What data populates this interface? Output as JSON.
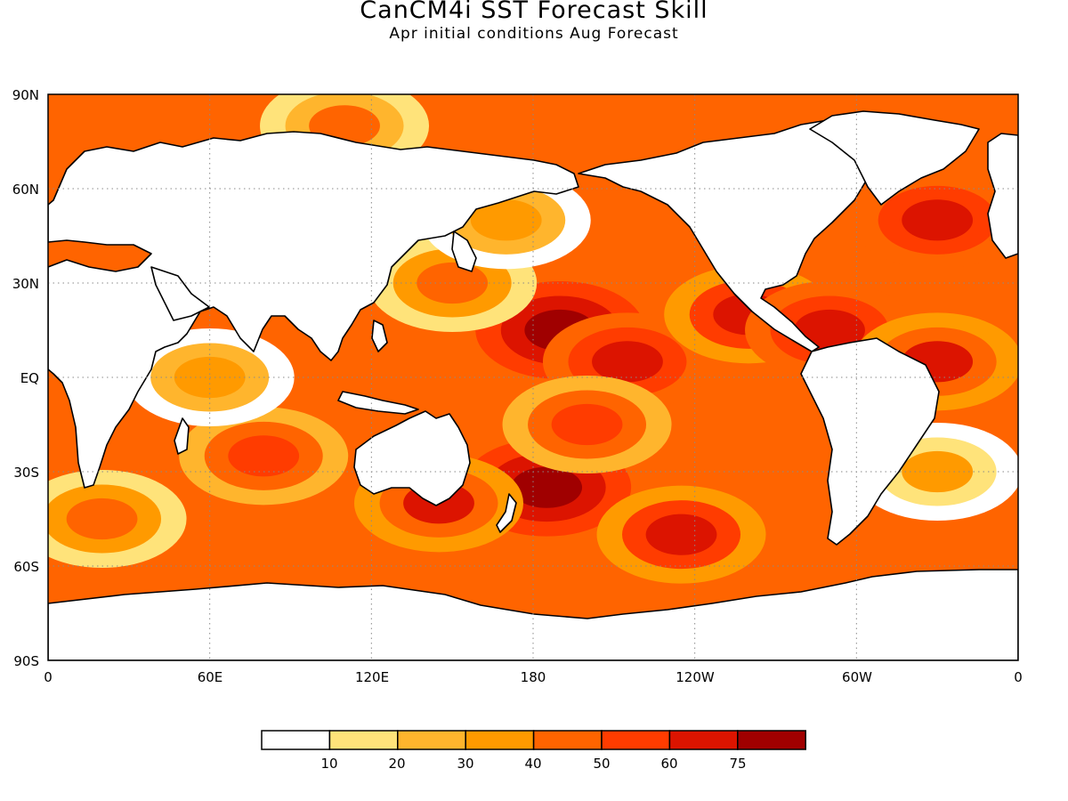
{
  "title": "CanCM4i SST Forecast Skill",
  "subtitle": "Apr initial conditions   Aug Forecast",
  "lat_labels": [
    "90N",
    "60N",
    "30N",
    "EQ",
    "30S",
    "60S",
    "90S"
  ],
  "lon_labels": [
    "0",
    "60E",
    "120E",
    "180",
    "120W",
    "60W",
    "0"
  ],
  "colorbar": {
    "colors": [
      "#ffffff",
      "#ffe37a",
      "#ffb52d",
      "#ff9a00",
      "#ff6400",
      "#ff3c00",
      "#dc1400",
      "#a00000"
    ],
    "labels": [
      "10",
      "20",
      "30",
      "40",
      "50",
      "60",
      "75"
    ]
  },
  "chart_data": {
    "type": "heatmap",
    "title": "CanCM4i SST Forecast Skill",
    "subtitle": "Apr initial conditions   Aug Forecast",
    "xlim": [
      0,
      360
    ],
    "ylim": [
      -90,
      90
    ],
    "levels": [
      10,
      20,
      30,
      40,
      50,
      60,
      75
    ],
    "grid": true,
    "regions": [
      {
        "lon": 190,
        "lat": 15,
        "value": 82
      },
      {
        "lon": 215,
        "lat": 5,
        "value": 70
      },
      {
        "lon": 185,
        "lat": -35,
        "value": 80
      },
      {
        "lon": 235,
        "lat": -50,
        "value": 68
      },
      {
        "lon": 260,
        "lat": 20,
        "value": 65
      },
      {
        "lon": 290,
        "lat": 15,
        "value": 70
      },
      {
        "lon": 330,
        "lat": 5,
        "value": 62
      },
      {
        "lon": 330,
        "lat": 50,
        "value": 70
      },
      {
        "lon": 150,
        "lat": 30,
        "value": 45
      },
      {
        "lon": 170,
        "lat": 50,
        "value": 35
      },
      {
        "lon": 80,
        "lat": -25,
        "value": 58
      },
      {
        "lon": 60,
        "lat": 0,
        "value": 35
      },
      {
        "lon": 20,
        "lat": -45,
        "value": 45
      },
      {
        "lon": 330,
        "lat": -30,
        "value": 30
      },
      {
        "lon": 110,
        "lat": 80,
        "value": 40
      },
      {
        "lon": 200,
        "lat": -15,
        "value": 55
      },
      {
        "lon": 145,
        "lat": -40,
        "value": 62
      }
    ]
  }
}
